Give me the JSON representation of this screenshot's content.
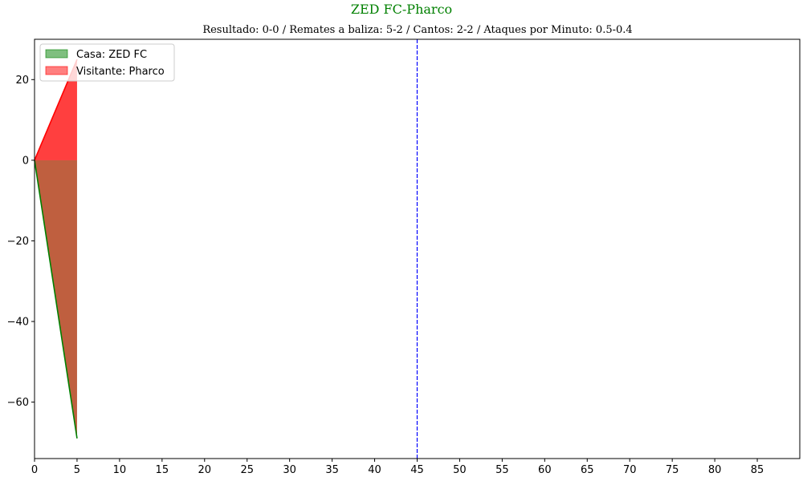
{
  "chart_data": {
    "type": "area",
    "title": "ZED FC-Pharco",
    "subtitle": "Resultado: 0-0 / Remates a baliza: 5-2 / Cantos: 2-2 / Ataques por Minuto: 0.5-0.4",
    "xlabel": "",
    "ylabel": "",
    "xlim": [
      0,
      90
    ],
    "ylim": [
      -74,
      30
    ],
    "xticks": [
      0,
      5,
      10,
      15,
      20,
      25,
      30,
      35,
      40,
      45,
      50,
      55,
      60,
      65,
      70,
      75,
      80,
      85
    ],
    "yticks": [
      -60,
      -40,
      -20,
      0,
      20
    ],
    "ytick_labels": [
      "−60",
      "−40",
      "−20",
      "0",
      "20"
    ],
    "vline": {
      "x": 45,
      "color": "#0000ff",
      "style": "dashed"
    },
    "grid": false,
    "legend_position": "upper-left",
    "series": [
      {
        "name": "Casa: ZED FC",
        "x": [
          0,
          5
        ],
        "y": [
          0,
          -69
        ],
        "line_color": "#008000",
        "fill_color": "#008000",
        "fill_alpha": 0.5
      },
      {
        "name": "Visitante: Pharco",
        "x": [
          0,
          5
        ],
        "y": [
          0,
          25
        ],
        "line_color": "#ff0000",
        "fill_color": "#ff0000",
        "fill_alpha": 0.5
      }
    ],
    "title_color": "#008000"
  }
}
